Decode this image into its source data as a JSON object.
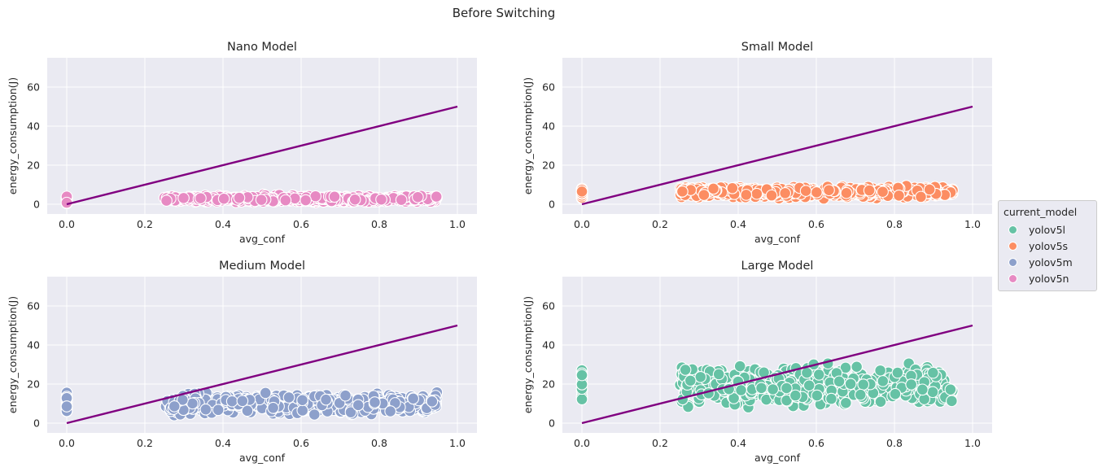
{
  "suptitle": "Before Switching",
  "legend": {
    "title": "current_model",
    "items": [
      {
        "label": "yolov5l",
        "color": "#66c2a5"
      },
      {
        "label": "yolov5s",
        "color": "#fc8d62"
      },
      {
        "label": "yolov5m",
        "color": "#8da0cb"
      },
      {
        "label": "yolov5n",
        "color": "#e78ac3"
      }
    ]
  },
  "line_color": "#800080",
  "chart_data": [
    {
      "type": "scatter",
      "title": "Nano Model",
      "xlabel": "avg_conf",
      "ylabel": "energy_consumption(J)",
      "xlim": [
        -0.05,
        1.05
      ],
      "ylim": [
        -5,
        75
      ],
      "xticks": [
        "0.0",
        "0.2",
        "0.4",
        "0.6",
        "0.8",
        "1.0"
      ],
      "yticks": [
        "0",
        "20",
        "40",
        "60"
      ],
      "grid": true,
      "series": "yolov5n",
      "color": "#e78ac3",
      "reference_line": {
        "x": [
          0,
          1
        ],
        "y": [
          0,
          50
        ]
      },
      "points": {
        "zero_conf": {
          "x": 0.0,
          "y_range": [
            0.5,
            4
          ]
        },
        "cluster": {
          "x_range": [
            0.25,
            0.95
          ],
          "y_range": [
            0.5,
            5
          ]
        }
      }
    },
    {
      "type": "scatter",
      "title": "Small Model",
      "xlabel": "avg_conf",
      "ylabel": "energy_consumption(J)",
      "xlim": [
        -0.05,
        1.05
      ],
      "ylim": [
        -5,
        75
      ],
      "xticks": [
        "0.0",
        "0.2",
        "0.4",
        "0.6",
        "0.8",
        "1.0"
      ],
      "yticks": [
        "0",
        "20",
        "40",
        "60"
      ],
      "grid": true,
      "series": "yolov5s",
      "color": "#fc8d62",
      "reference_line": {
        "x": [
          0,
          1
        ],
        "y": [
          0,
          50
        ]
      },
      "points": {
        "zero_conf": {
          "x": 0.0,
          "y_range": [
            3,
            9
          ]
        },
        "cluster": {
          "x_range": [
            0.25,
            0.95
          ],
          "y_range": [
            2.5,
            10
          ]
        }
      }
    },
    {
      "type": "scatter",
      "title": "Medium Model",
      "xlabel": "avg_conf",
      "ylabel": "energy_consumption(J)",
      "xlim": [
        -0.05,
        1.05
      ],
      "ylim": [
        -5,
        75
      ],
      "xticks": [
        "0.0",
        "0.2",
        "0.4",
        "0.6",
        "0.8",
        "1.0"
      ],
      "yticks": [
        "0",
        "20",
        "40",
        "60"
      ],
      "grid": true,
      "series": "yolov5m",
      "color": "#8da0cb",
      "reference_line": {
        "x": [
          0,
          1
        ],
        "y": [
          0,
          50
        ]
      },
      "points": {
        "zero_conf": {
          "x": 0.0,
          "y_range": [
            6,
            16
          ]
        },
        "cluster": {
          "x_range": [
            0.25,
            0.95
          ],
          "y_range": [
            3,
            17
          ]
        }
      }
    },
    {
      "type": "scatter",
      "title": "Large Model",
      "xlabel": "avg_conf",
      "ylabel": "energy_consumption(J)",
      "xlim": [
        -0.05,
        1.05
      ],
      "ylim": [
        -5,
        75
      ],
      "xticks": [
        "0.0",
        "0.2",
        "0.4",
        "0.6",
        "0.8",
        "1.0"
      ],
      "yticks": [
        "0",
        "20",
        "40",
        "60"
      ],
      "grid": true,
      "series": "yolov5l",
      "color": "#66c2a5",
      "reference_line": {
        "x": [
          0,
          1
        ],
        "y": [
          0,
          50
        ]
      },
      "points": {
        "zero_conf": {
          "x": 0.0,
          "y_range": [
            12,
            29
          ]
        },
        "cluster": {
          "x_range": [
            0.25,
            0.95
          ],
          "y_range": [
            6,
            32
          ]
        }
      }
    }
  ]
}
